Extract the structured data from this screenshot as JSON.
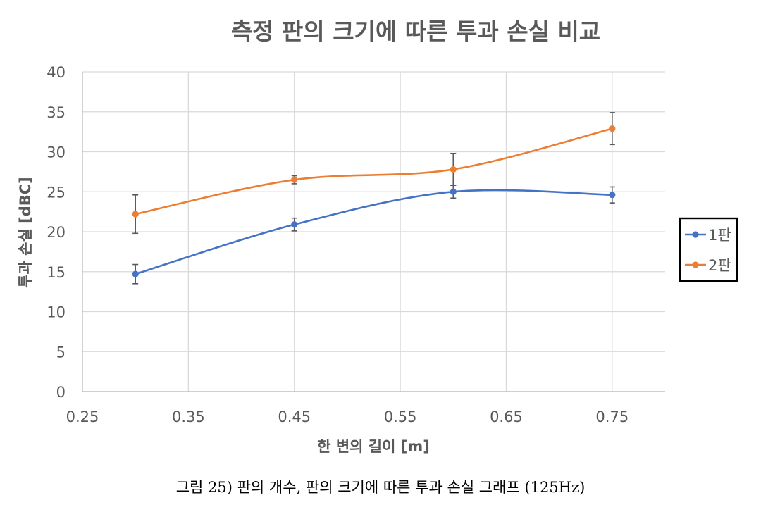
{
  "chart_data": {
    "type": "line",
    "title": "측정 판의 크기에 따른 투과 손실 비교",
    "xlabel": "한 변의 길이 [m]",
    "ylabel": "투과 손실 [dBC]",
    "xlim": [
      0.25,
      0.8
    ],
    "ylim": [
      0,
      40
    ],
    "xticks": [
      0.25,
      0.35,
      0.45,
      0.55,
      0.65,
      0.75
    ],
    "xtick_labels": [
      "0.25",
      "0.35",
      "0.45",
      "0.55",
      "0.65",
      "0.75"
    ],
    "yticks": [
      0,
      5,
      10,
      15,
      20,
      25,
      30,
      35,
      40
    ],
    "ytick_labels": [
      "0",
      "5",
      "10",
      "15",
      "20",
      "25",
      "30",
      "35",
      "40"
    ],
    "grid": true,
    "smooth": true,
    "legend_position": "right",
    "x": [
      0.3,
      0.45,
      0.6,
      0.75
    ],
    "series": [
      {
        "name": "1판",
        "color": "#4472C4",
        "values": [
          14.7,
          20.9,
          25.0,
          24.6
        ],
        "error": [
          1.2,
          0.8,
          0.8,
          1.0
        ]
      },
      {
        "name": "2판",
        "color": "#ED7D31",
        "values": [
          22.2,
          26.5,
          27.8,
          32.9
        ],
        "error": [
          2.4,
          0.5,
          2.0,
          2.0
        ]
      }
    ]
  },
  "caption": "그림 25) 판의 개수, 판의 크기에 따른 투과 손실 그래프 (125Hz)"
}
